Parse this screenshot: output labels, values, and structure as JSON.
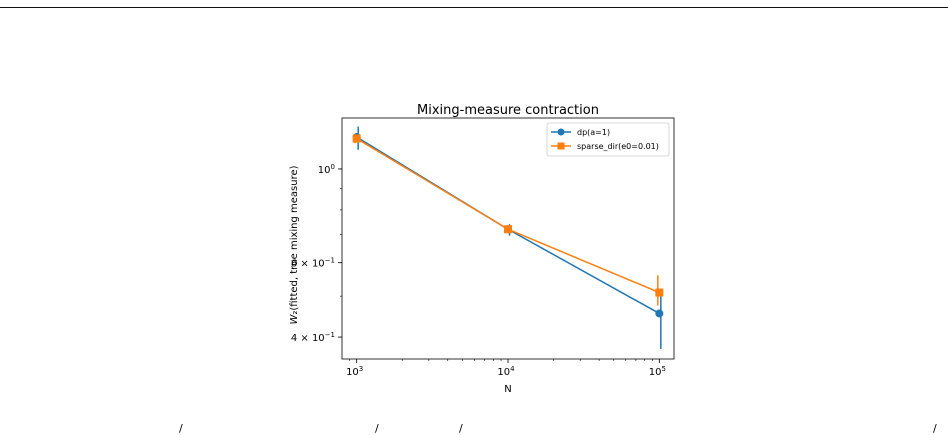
{
  "chart_data": {
    "type": "line",
    "title": "Mixing-measure contraction",
    "xlabel": "N",
    "ylabel": "W₂(fitted, true mixing measure)",
    "xscale": "log",
    "yscale": "log",
    "xlim": [
      800,
      125000
    ],
    "ylim": [
      0.355,
      1.32
    ],
    "xticks": [
      {
        "value": 1000,
        "base": "10",
        "exp": "3"
      },
      {
        "value": 10000,
        "base": "10",
        "exp": "4"
      },
      {
        "value": 100000,
        "base": "10",
        "exp": "5"
      }
    ],
    "yticks": [
      {
        "value": 1.0,
        "mantissa": "",
        "base": "10",
        "exp": "0"
      },
      {
        "value": 0.6,
        "mantissa": "6 × ",
        "base": "10",
        "exp": "−1"
      },
      {
        "value": 0.4,
        "mantissa": "4 × ",
        "base": "10",
        "exp": "−1"
      }
    ],
    "x": [
      1000,
      10000,
      100000
    ],
    "series": [
      {
        "name": "dp(a=1)",
        "color": "#1f77b4",
        "marker": "circle",
        "values": [
          1.19,
          0.72,
          0.455
        ],
        "err_low": [
          1.11,
          0.695,
          0.375
        ],
        "err_high": [
          1.26,
          0.74,
          0.5
        ]
      },
      {
        "name": "sparse_dir(e0=0.01)",
        "color": "#ff7f0e",
        "marker": "square",
        "values": [
          1.18,
          0.72,
          0.51
        ],
        "err_low": [
          1.15,
          0.705,
          0.475
        ],
        "err_high": [
          1.21,
          0.735,
          0.56
        ]
      }
    ],
    "legend_position": "top-right",
    "grid": false
  }
}
